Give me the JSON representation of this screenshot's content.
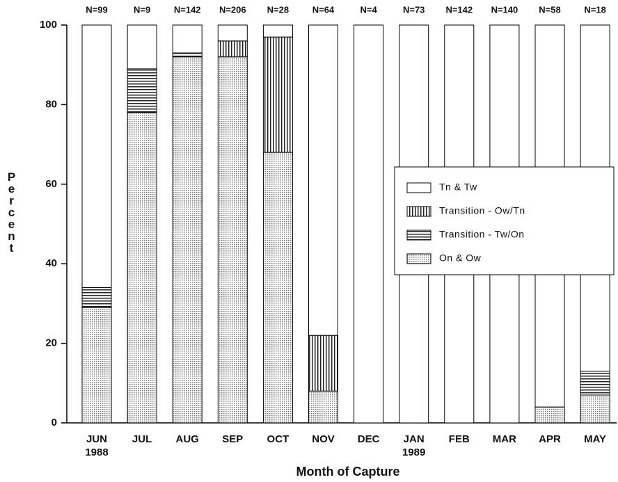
{
  "chart_data": {
    "type": "stacked_bar",
    "x_label": "Month of Capture",
    "y_label": "Percent",
    "categories": [
      "JUN 1988",
      "JUL",
      "AUG",
      "SEP",
      "OCT",
      "NOV",
      "DEC",
      "JAN 1989",
      "FEB",
      "MAR",
      "APR",
      "MAY"
    ],
    "n_labels": [
      "N=99",
      "N=9",
      "N=142",
      "N=206",
      "N=28",
      "N=64",
      "N=4",
      "N=73",
      "N=142",
      "N=140",
      "N=58",
      "N=18"
    ],
    "series": [
      {
        "name": "On & Ow",
        "color": "#bbbbbb",
        "pattern": "dots",
        "values": [
          29,
          78,
          92,
          92,
          68,
          8,
          0,
          0,
          0,
          0,
          4,
          7
        ]
      },
      {
        "name": "Transition - Tw/On",
        "color": "#000000",
        "pattern": "horizontal",
        "values": [
          5,
          11,
          1,
          0,
          0,
          0,
          0,
          0,
          0,
          0,
          0,
          6
        ]
      },
      {
        "name": "Transition - Ow/Tn",
        "color": "#000000",
        "pattern": "vertical",
        "values": [
          0,
          0,
          0,
          4,
          29,
          14,
          0,
          0,
          0,
          0,
          0,
          0
        ]
      },
      {
        "name": "Tn & Tw",
        "color": "#ffffff",
        "pattern": "none",
        "values": [
          66,
          11,
          7,
          4,
          3,
          78,
          100,
          100,
          100,
          100,
          96,
          87
        ]
      }
    ],
    "ylim": [
      0,
      100
    ],
    "yticks": [
      0,
      20,
      40,
      60,
      80,
      100
    ],
    "legend": "right"
  }
}
